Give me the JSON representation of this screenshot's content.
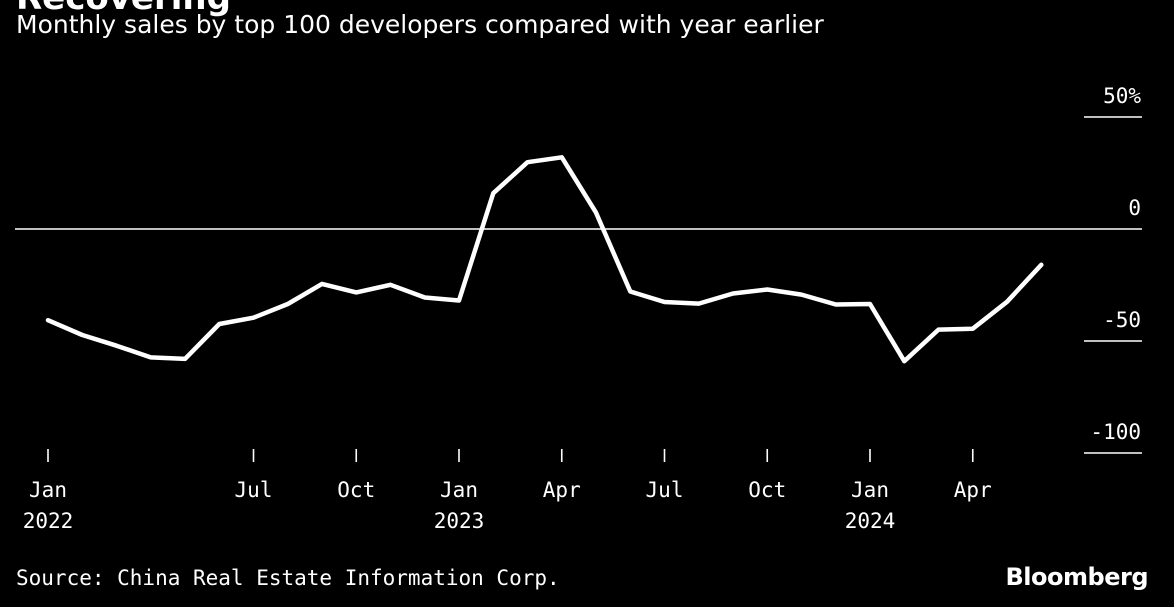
{
  "header": {
    "title": "Recovering",
    "subtitle": "Monthly sales by top 100 developers compared with year earlier"
  },
  "footer": {
    "source": "Source: China Real Estate Information Corp.",
    "logo": "Bloomberg"
  },
  "colors": {
    "background": "#000000",
    "line": "#ffffff",
    "text": "#ffffff"
  },
  "chart_data": {
    "type": "line",
    "title": "Recovering",
    "subtitle": "Monthly sales by top 100 developers compared with year earlier",
    "xlabel": "",
    "ylabel": "",
    "y_axis_side": "right",
    "ylim": [
      -100,
      50
    ],
    "yticks": [
      {
        "value": 50,
        "label": "50%"
      },
      {
        "value": 0,
        "label": "0"
      },
      {
        "value": -50,
        "label": "-50"
      },
      {
        "value": -100,
        "label": "-100"
      }
    ],
    "xticks": [
      {
        "x": "2022-01",
        "line1": "Jan",
        "line2": "2022"
      },
      {
        "x": "2022-07",
        "line1": "Jul",
        "line2": ""
      },
      {
        "x": "2022-10",
        "line1": "Oct",
        "line2": ""
      },
      {
        "x": "2023-01",
        "line1": "Jan",
        "line2": "2023"
      },
      {
        "x": "2023-04",
        "line1": "Apr",
        "line2": ""
      },
      {
        "x": "2023-07",
        "line1": "Jul",
        "line2": ""
      },
      {
        "x": "2023-10",
        "line1": "Oct",
        "line2": ""
      },
      {
        "x": "2024-01",
        "line1": "Jan",
        "line2": "2024"
      },
      {
        "x": "2024-04",
        "line1": "Apr",
        "line2": ""
      }
    ],
    "xlim": [
      "2022-01",
      "2024-07"
    ],
    "zero_line": true,
    "grid": false,
    "series": [
      {
        "x": [
          "2022-01",
          "2022-02",
          "2022-03",
          "2022-04",
          "2022-05",
          "2022-06",
          "2022-07",
          "2022-08",
          "2022-09",
          "2022-10",
          "2022-11",
          "2022-12",
          "2023-01",
          "2023-02",
          "2023-03",
          "2023-04",
          "2023-05",
          "2023-06",
          "2023-07",
          "2023-08",
          "2023-09",
          "2023-10",
          "2023-11",
          "2023-12",
          "2024-01",
          "2024-02",
          "2024-03",
          "2024-04",
          "2024-05",
          "2024-06"
        ],
        "values": [
          -40.7,
          -47.3,
          -52.1,
          -57.3,
          -58.0,
          -42.4,
          -39.6,
          -33.5,
          -24.5,
          -28.3,
          -24.9,
          -30.6,
          -31.9,
          16.0,
          29.8,
          32.0,
          7.3,
          -27.9,
          -32.6,
          -33.3,
          -28.8,
          -27.0,
          -29.3,
          -33.7,
          -33.5,
          -59.0,
          -44.9,
          -44.5,
          -32.5,
          -16.0
        ]
      }
    ]
  }
}
